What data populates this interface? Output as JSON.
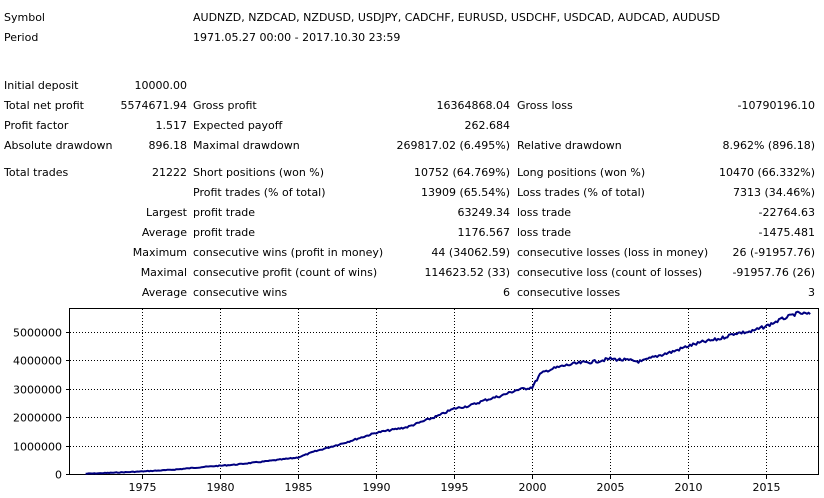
{
  "report": {
    "symbol_label": "Symbol",
    "symbol_value": "AUDNZD, NZDCAD, NZDUSD, USDJPY, CADCHF, EURUSD, USDCHF, USDCAD, AUDCAD, AUDUSD",
    "period_label": "Period",
    "period_value": "1971.05.27 00:00 - 2017.10.30 23:59"
  },
  "stats": {
    "initial_deposit_label": "Initial deposit",
    "initial_deposit": "10000.00",
    "total_net_profit_label": "Total net profit",
    "total_net_profit": "5574671.94",
    "gross_profit_label": "Gross profit",
    "gross_profit": "16364868.04",
    "gross_loss_label": "Gross loss",
    "gross_loss": "-10790196.10",
    "profit_factor_label": "Profit factor",
    "profit_factor": "1.517",
    "expected_payoff_label": "Expected payoff",
    "expected_payoff": "262.684",
    "absolute_drawdown_label": "Absolute drawdown",
    "absolute_drawdown": "896.18",
    "maximal_drawdown_label": "Maximal drawdown",
    "maximal_drawdown": "269817.02 (6.495%)",
    "relative_drawdown_label": "Relative drawdown",
    "relative_drawdown": "8.962% (896.18)",
    "total_trades_label": "Total trades",
    "total_trades": "21222",
    "short_positions_label": "Short positions (won %)",
    "short_positions": "10752 (64.769%)",
    "long_positions_label": "Long positions (won %)",
    "long_positions": "10470 (66.332%)",
    "profit_trades_label": "Profit trades (% of total)",
    "profit_trades": "13909 (65.54%)",
    "loss_trades_label": "Loss trades (% of total)",
    "loss_trades": "7313 (34.46%)",
    "largest_label": "Largest",
    "largest_profit_label": "profit trade",
    "largest_profit": "63249.34",
    "largest_loss_label": "loss trade",
    "largest_loss": "-22764.63",
    "average_label": "Average",
    "average_profit_label": "profit trade",
    "average_profit": "1176.567",
    "average_loss_label": "loss trade",
    "average_loss": "-1475.481",
    "maximum_label": "Maximum",
    "max_cons_wins_label": "consecutive wins (profit in money)",
    "max_cons_wins": "44 (34062.59)",
    "max_cons_losses_label": "consecutive losses (loss in money)",
    "max_cons_losses": "26 (-91957.76)",
    "maximal_label": "Maximal",
    "maximal_cons_profit_label": "consecutive profit (count of wins)",
    "maximal_cons_profit": "114623.52 (33)",
    "maximal_cons_loss_label": "consecutive loss (count of losses)",
    "maximal_cons_loss": "-91957.76 (26)",
    "average2_label": "Average",
    "avg_cons_wins_label": "consecutive wins",
    "avg_cons_wins": "6",
    "avg_cons_losses_label": "consecutive losses",
    "avg_cons_losses": "3"
  },
  "chart_data": {
    "type": "line",
    "title": "",
    "xlabel": "",
    "ylabel": "",
    "xlim": [
      1970.4,
      2018.3
    ],
    "ylim": [
      0,
      5800000
    ],
    "x_ticks": [
      1975,
      1980,
      1985,
      1990,
      1995,
      2000,
      2005,
      2010,
      2015
    ],
    "y_ticks": [
      0,
      1000000,
      2000000,
      3000000,
      4000000,
      5000000
    ],
    "y_tick_labels": [
      "0",
      "1000000",
      "2000000",
      "3000000",
      "4000000",
      "5000000"
    ],
    "grid": true,
    "line_color": "#000080",
    "series": [
      {
        "x": [
          1971.4,
          1973,
          1975,
          1977,
          1979,
          1981,
          1983,
          1985,
          1986,
          1988,
          1990,
          1992,
          1994,
          1995,
          1996,
          1997,
          1998,
          1999,
          2000,
          2000.5,
          2001,
          2002,
          2003,
          2004,
          2005,
          2006,
          2007,
          2008,
          2009,
          2010,
          2011,
          2012,
          2013,
          2014,
          2015,
          2016,
          2017,
          2017.8
        ],
        "y": [
          10000,
          40000,
          90000,
          150000,
          250000,
          330000,
          450000,
          580000,
          780000,
          1100000,
          1450000,
          1650000,
          2050000,
          2300000,
          2400000,
          2600000,
          2750000,
          2950000,
          3050000,
          3500000,
          3650000,
          3800000,
          3900000,
          3950000,
          4050000,
          4000000,
          3950000,
          4150000,
          4300000,
          4500000,
          4650000,
          4750000,
          4950000,
          5000000,
          5200000,
          5450000,
          5650000,
          5620000
        ]
      }
    ]
  }
}
